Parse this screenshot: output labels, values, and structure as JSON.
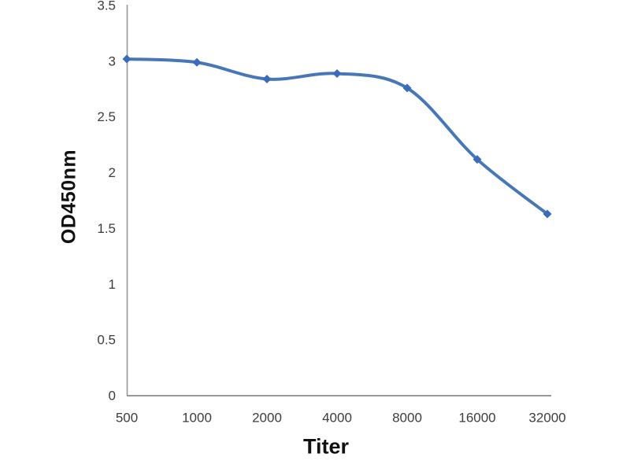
{
  "chart_data": {
    "type": "line",
    "title": "",
    "xlabel": "Titer",
    "ylabel": "OD450nm",
    "categories": [
      "500",
      "1000",
      "2000",
      "4000",
      "8000",
      "16000",
      "32000"
    ],
    "series": [
      {
        "values": [
          3.02,
          2.99,
          2.84,
          2.89,
          2.76,
          2.12,
          1.63
        ],
        "line_color": "#4777b7",
        "marker_color": "#3b6cbb",
        "marker": "diamond",
        "smooth": true
      }
    ],
    "ylim": [
      0,
      3.5
    ],
    "ytick_labels": [
      "0",
      "0.5",
      "1",
      "1.5",
      "2",
      "2.5",
      "3",
      "3.5"
    ],
    "grid": false,
    "legend": "none",
    "axis_color": "#989898",
    "tick_label_color": "#3d3d3d"
  }
}
